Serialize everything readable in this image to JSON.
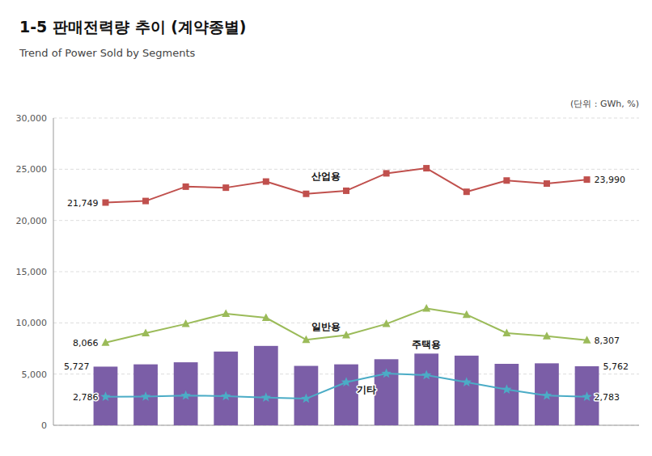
{
  "chart_data": {
    "type": "bar",
    "title": "1-5 판매전력량 추이 (계약종별)",
    "subtitle": "Trend of Power Sold by Segments",
    "y_label": "(단위 : GWh, %)",
    "categories": [
      null,
      null,
      null,
      null,
      null,
      null,
      null,
      null,
      null,
      null,
      null,
      null,
      null
    ],
    "series": [
      {
        "name": "주택용",
        "type": "bar",
        "color": "#7B5EA7",
        "values": [
          5727,
          5950,
          6150,
          7200,
          7750,
          5800,
          5950,
          6450,
          7000,
          6800,
          6000,
          6050,
          5762
        ],
        "value_labels": [
          "5,727",
          null,
          null,
          null,
          null,
          null,
          null,
          null,
          null,
          null,
          null,
          null,
          "5,762"
        ]
      },
      {
        "name": "산업용",
        "type": "line",
        "color": "#C0504D",
        "marker": "square",
        "line_style": "solid",
        "values": [
          21749,
          21900,
          23300,
          23200,
          23800,
          22600,
          22900,
          24600,
          25100,
          22800,
          23900,
          23600,
          23990
        ],
        "value_labels": [
          "21,749",
          null,
          null,
          null,
          null,
          null,
          null,
          null,
          null,
          null,
          null,
          null,
          "23,990"
        ]
      },
      {
        "name": "일반용",
        "type": "line",
        "color": "#9BBB59",
        "marker": "triangle",
        "line_style": "solid",
        "values": [
          8066,
          9000,
          9900,
          10900,
          10500,
          8350,
          8800,
          9900,
          11400,
          10800,
          9000,
          8700,
          8307
        ],
        "value_labels": [
          "8,066",
          null,
          null,
          null,
          null,
          null,
          null,
          null,
          null,
          null,
          null,
          null,
          "8,307"
        ]
      },
      {
        "name": "기타",
        "type": "line",
        "color": "#4BACC6",
        "marker": "star",
        "line_style": "solid",
        "values": [
          2786,
          2800,
          2900,
          2850,
          2700,
          2600,
          4200,
          5050,
          4900,
          4200,
          3500,
          2900,
          2783
        ],
        "value_labels": [
          "2,786",
          null,
          null,
          null,
          null,
          null,
          null,
          null,
          null,
          null,
          null,
          null,
          "2,783"
        ]
      }
    ],
    "ylim": [
      0,
      30000
    ],
    "yticks": [
      0,
      {
        "value": 5000,
        "label": "5,000"
      },
      {
        "value": 10000,
        "label": "10,000"
      },
      {
        "value": 15000,
        "label": "15,000"
      },
      {
        "value": 20000,
        "label": "20,000"
      },
      {
        "value": 25000,
        "label": "25,000"
      },
      {
        "value": 30000,
        "label": "30,000"
      }
    ],
    "grid": true,
    "tick_labels": "y"
  }
}
